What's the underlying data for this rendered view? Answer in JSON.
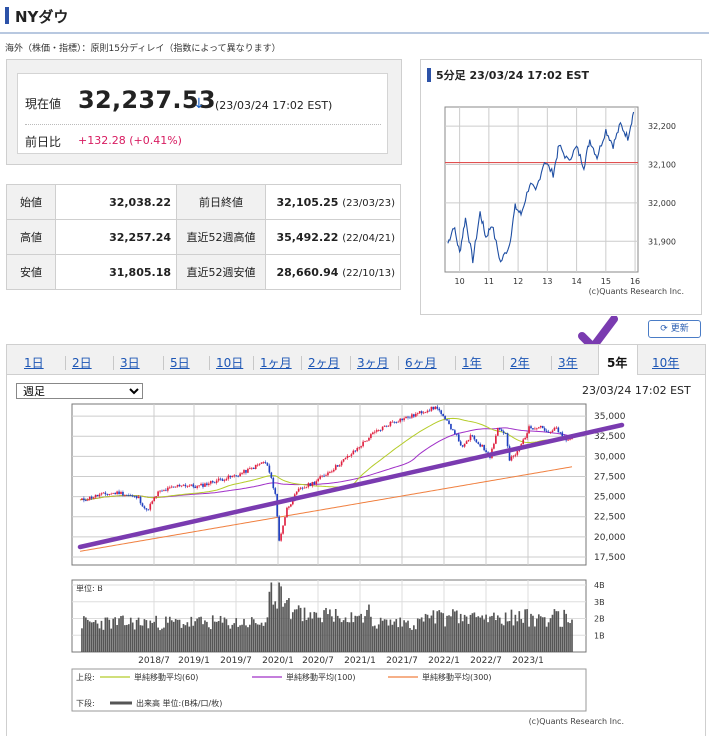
{
  "page_title": "NYダウ",
  "note": "海外（株価・指標）：原則15分ディレイ（指数によって異なります）",
  "quote": {
    "label": "現在値",
    "value": "32,237.53",
    "arrow": "↓",
    "time": "(23/03/24 17:02 EST)",
    "change_label": "前日比",
    "change_value": "+132.28 (+0.41%)"
  },
  "stats": [
    {
      "label1": "始値",
      "value1": "32,038.22",
      "label2": "前日終値",
      "value2": "32,105.25",
      "date2": "(23/03/23)"
    },
    {
      "label1": "高値",
      "value1": "32,257.24",
      "label2": "直近52週高値",
      "value2": "35,492.22",
      "date2": "(22/04/21)"
    },
    {
      "label1": "安値",
      "value1": "31,805.18",
      "label2": "直近52週安値",
      "value2": "28,660.94",
      "date2": "(22/10/13)"
    }
  ],
  "mini_chart": {
    "title": "5分足 23/03/24 17:02 EST",
    "credit": "(c)Quants Research Inc.",
    "x_ticks": [
      "10",
      "11",
      "12",
      "13",
      "14",
      "15",
      "16"
    ],
    "y_ticks": [
      "32,200",
      "32,100",
      "32,000",
      "31,900"
    ],
    "reference_line": 32105.25,
    "colors": {
      "line": "#1f4fa3",
      "reference": "#e05050"
    }
  },
  "refresh_label": "更新",
  "tabs": [
    {
      "label": "1日",
      "active": false
    },
    {
      "label": "2日",
      "active": false
    },
    {
      "label": "3日",
      "active": false
    },
    {
      "label": "5日",
      "active": false
    },
    {
      "label": "10日",
      "active": false
    },
    {
      "label": "1ヶ月",
      "active": false
    },
    {
      "label": "2ヶ月",
      "active": false
    },
    {
      "label": "3ヶ月",
      "active": false
    },
    {
      "label": "6ヶ月",
      "active": false
    },
    {
      "label": "1年",
      "active": false
    },
    {
      "label": "2年",
      "active": false
    },
    {
      "label": "3年",
      "active": false
    },
    {
      "label": "5年",
      "active": true
    },
    {
      "label": "10年",
      "active": false
    }
  ],
  "period_select": {
    "value": "週足",
    "options": [
      "週足"
    ]
  },
  "main_chart": {
    "time": "23/03/24 17:02 EST",
    "x_ticks": [
      "2018/7",
      "2019/1",
      "2019/7",
      "2020/1",
      "2020/7",
      "2021/1",
      "2021/7",
      "2022/1",
      "2022/7",
      "2023/1"
    ],
    "y_ticks": [
      "35,000",
      "32,500",
      "30,000",
      "27,500",
      "25,000",
      "22,500",
      "20,000",
      "17,500"
    ],
    "volume_unit_label": "単位: B",
    "volume_ticks": [
      "4B",
      "3B",
      "2B",
      "1B"
    ],
    "legend_upper_label": "上段:",
    "legend_items": [
      {
        "label": "単純移動平均(60)",
        "color": "#b5cc2a"
      },
      {
        "label": "単純移動平均(100)",
        "color": "#a030c8"
      },
      {
        "label": "単純移動平均(300)",
        "color": "#f08040"
      }
    ],
    "legend_lower_label": "下段:",
    "legend_volume": "出来高 単位:(B株/口/枚)",
    "credit": "(c)Quants Research Inc.",
    "colors": {
      "up": "#e02040",
      "down": "#2040c0",
      "trend_annotation": "#7a3bb0",
      "volume": "#555555"
    }
  }
}
